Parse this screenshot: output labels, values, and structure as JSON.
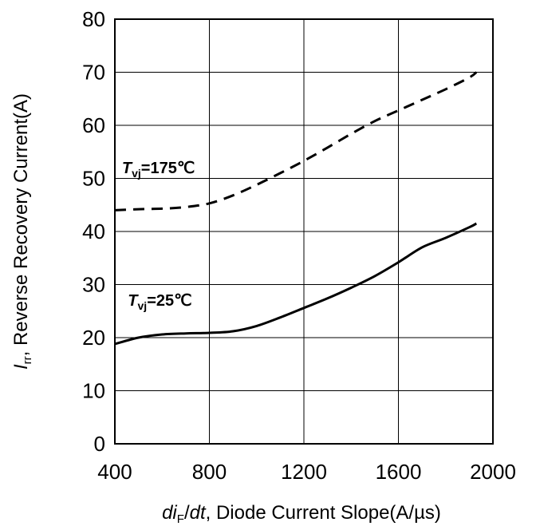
{
  "chart_data": {
    "type": "line",
    "title": "",
    "xlabel": {
      "var1": "di",
      "sub1": "F",
      "slash": "/",
      "var2": "dt",
      "rest": ", Diode Current Slope(A/µs)"
    },
    "ylabel": {
      "var": "I",
      "sub": "rr",
      "rest": ", Reverse Recovery Current(A)"
    },
    "xlim": [
      400,
      2000
    ],
    "ylim": [
      0,
      80
    ],
    "xticks": [
      400,
      800,
      1200,
      1600,
      2000
    ],
    "yticks": [
      0,
      10,
      20,
      30,
      40,
      50,
      60,
      70,
      80
    ],
    "grid": true,
    "legend": "none",
    "series": [
      {
        "label": {
          "var": "T",
          "sub": "vj",
          "rest": "=175℃"
        },
        "style": "dashed",
        "color": "#000000",
        "x": [
          400,
          500,
          600,
          700,
          800,
          900,
          1000,
          1100,
          1200,
          1300,
          1400,
          1500,
          1600,
          1700,
          1800,
          1900,
          1930
        ],
        "y": [
          44.0,
          44.2,
          44.3,
          44.6,
          45.3,
          46.8,
          48.8,
          51.0,
          53.3,
          55.8,
          58.4,
          60.8,
          62.8,
          64.8,
          66.8,
          69.0,
          70.0
        ]
      },
      {
        "label": {
          "var": "T",
          "sub": "vj",
          "rest": "=25℃"
        },
        "style": "solid",
        "color": "#000000",
        "x": [
          400,
          500,
          600,
          700,
          800,
          900,
          1000,
          1100,
          1200,
          1300,
          1400,
          1500,
          1600,
          1700,
          1800,
          1900,
          1930
        ],
        "y": [
          18.8,
          20.0,
          20.6,
          20.8,
          20.9,
          21.2,
          22.2,
          23.8,
          25.6,
          27.4,
          29.4,
          31.6,
          34.2,
          37.0,
          38.8,
          40.8,
          41.5
        ]
      }
    ],
    "annotations": [
      {
        "series": 0,
        "x": 430,
        "y": 51.0
      },
      {
        "series": 1,
        "x": 455,
        "y": 26.0
      }
    ]
  }
}
